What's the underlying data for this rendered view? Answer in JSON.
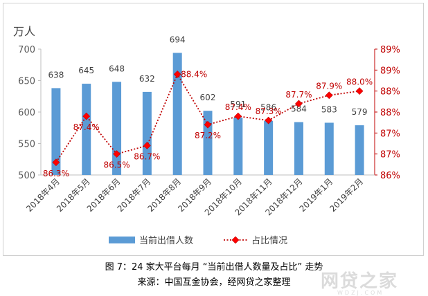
{
  "chart_data": {
    "type": "bar+line",
    "categories": [
      "2018年4月",
      "2018年5月",
      "2018年6月",
      "2018年7月",
      "2018年8月",
      "2018年9月",
      "2018年10月",
      "2018年11月",
      "2018年12月",
      "2019年1月",
      "2019年2月"
    ],
    "series": [
      {
        "name": "当前出借人数",
        "type": "bar",
        "axis": "left",
        "values": [
          638,
          645,
          648,
          632,
          694,
          602,
          591,
          586,
          584,
          583,
          579
        ],
        "labels": [
          "638",
          "645",
          "648",
          "632",
          "694",
          "602",
          "591",
          "586",
          "584",
          "583",
          "579"
        ]
      },
      {
        "name": "占比情况",
        "type": "line",
        "axis": "right",
        "values": [
          86.3,
          87.4,
          86.5,
          86.7,
          88.4,
          87.2,
          87.4,
          87.3,
          87.7,
          87.9,
          88.0
        ],
        "labels": [
          "86.3%",
          "87.4%",
          "86.5%",
          "86.7%",
          "88.4%",
          "87.2%",
          "87.4%",
          "87.3%",
          "87.7%",
          "87.9%",
          "88.0%"
        ]
      }
    ],
    "ylabel": "万人",
    "ylim": [
      500,
      700
    ],
    "yticks": [
      "700",
      "650",
      "600",
      "550",
      "500"
    ],
    "y2lim": [
      86.0,
      89.0
    ],
    "y2ticks": [
      "89%",
      "89%",
      "88%",
      "88%",
      "87%",
      "87%",
      "86%"
    ],
    "legend": "bottom",
    "colors": {
      "bar": "#5b9bd5",
      "line": "#c00000",
      "marker": "#ff0000",
      "axis_left": "#595959",
      "axis_right": "#c00000"
    }
  },
  "caption": {
    "title": "图 7：24 家大平台每月 “当前出借人数量及占比” 走势",
    "source": "来源：中国互金协会，经网贷之家整理"
  },
  "watermark": {
    "text": "网贷之家",
    "sub": "WDZJ.COM"
  }
}
